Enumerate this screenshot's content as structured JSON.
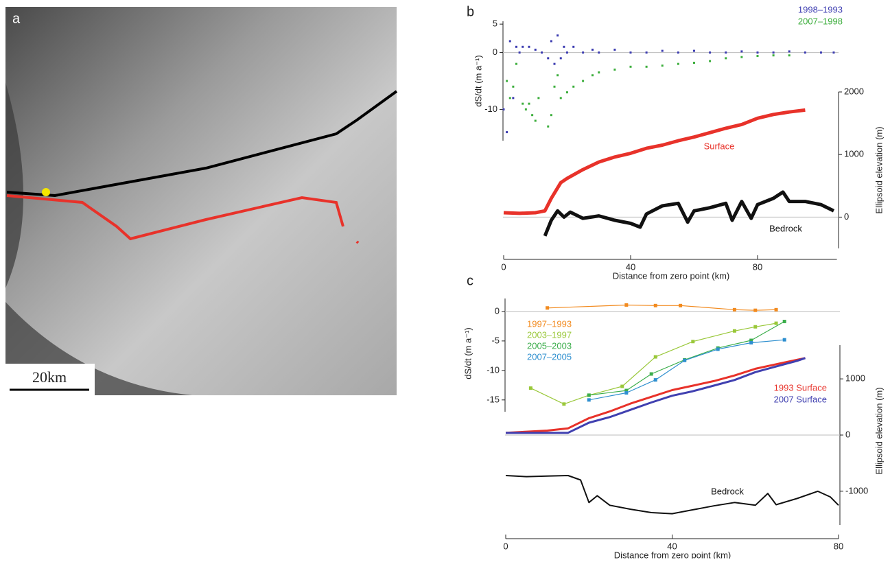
{
  "image_panel": {
    "label": "a",
    "scale_bar": "20km"
  },
  "chart_data": [
    {
      "type": "scatter",
      "label": "b",
      "xlabel": "Distance from zero point (km)",
      "ylabel": "dS/dt (m a⁻¹)",
      "y2label": "Ellipsoid elevation (m)",
      "xlim": [
        0,
        105
      ],
      "xticks": [
        0,
        40,
        80
      ],
      "ylim": [
        -15.5,
        5.5
      ],
      "yticks": [
        5,
        0,
        -10
      ],
      "y2lim": [
        -500,
        2000
      ],
      "y2ticks": [
        0,
        1000,
        2000
      ],
      "series": [
        {
          "name": "1998–1993",
          "color": "#3b3bb0",
          "mode": "points",
          "x": [
            0,
            1,
            2,
            3,
            4,
            5,
            6,
            8,
            10,
            12,
            14,
            15,
            16,
            17,
            18,
            19,
            20,
            22,
            25,
            28,
            30,
            35,
            40,
            45,
            50,
            55,
            60,
            65,
            70,
            75,
            80,
            85,
            90,
            95,
            100,
            104
          ],
          "values": [
            -10,
            -14,
            2,
            -8,
            1,
            0,
            1,
            1,
            0.5,
            0,
            -1,
            2,
            -2,
            3,
            -1,
            1,
            0,
            1,
            0,
            0.5,
            0,
            0.5,
            0,
            0,
            0.3,
            0,
            0.3,
            0,
            0,
            0.2,
            0,
            0,
            0.2,
            0,
            0,
            0
          ]
        },
        {
          "name": "2007–1998",
          "color": "#3cae3c",
          "mode": "points",
          "x": [
            1,
            2,
            3,
            4,
            6,
            7,
            8,
            9,
            10,
            11,
            14,
            15,
            16,
            17,
            18,
            20,
            22,
            25,
            28,
            30,
            35,
            40,
            45,
            50,
            55,
            60,
            65,
            70,
            75,
            80,
            85,
            90
          ],
          "values": [
            -5,
            -8,
            -6,
            -2,
            -9,
            -10,
            -9,
            -11,
            -12,
            -8,
            -13,
            -11,
            -6,
            -4,
            -8,
            -7,
            -6,
            -5,
            -4,
            -3.5,
            -3,
            -2.5,
            -2.5,
            -2.3,
            -2,
            -1.8,
            -1.5,
            -1,
            -0.8,
            -0.6,
            -0.5,
            -0.5
          ]
        },
        {
          "color": "#e8322a",
          "mode": "thick",
          "axis": "y2",
          "x": [
            0,
            5,
            10,
            13,
            15,
            18,
            20,
            25,
            30,
            35,
            40,
            45,
            50,
            55,
            60,
            65,
            70,
            75,
            80,
            85,
            90,
            95
          ],
          "values": [
            70,
            60,
            70,
            100,
            300,
            550,
            620,
            760,
            880,
            960,
            1020,
            1100,
            1150,
            1220,
            1280,
            1350,
            1420,
            1480,
            1580,
            1640,
            1680,
            1710
          ]
        },
        {
          "color": "#111111",
          "mode": "thick",
          "axis": "y2",
          "x": [
            13,
            15,
            17,
            19,
            21,
            25,
            30,
            35,
            40,
            43,
            45,
            50,
            55,
            58,
            60,
            65,
            70,
            72,
            75,
            78,
            80,
            85,
            88,
            90,
            95,
            100,
            104
          ],
          "values": [
            -300,
            -50,
            100,
            0,
            80,
            -20,
            20,
            -50,
            -100,
            -160,
            50,
            180,
            220,
            -80,
            100,
            150,
            220,
            -50,
            250,
            -20,
            200,
            300,
            400,
            250,
            250,
            200,
            100
          ]
        }
      ],
      "annotations": [
        {
          "text": "Surface",
          "color": "#e8322a"
        },
        {
          "text": "Bedrock",
          "color": "#111111"
        }
      ]
    },
    {
      "type": "line",
      "label": "c",
      "xlabel": "Distance from zero point (km)",
      "ylabel": "dS/dt (m a⁻¹)",
      "y2label": "Ellipsoid elevation (m)",
      "xlim": [
        0,
        80
      ],
      "xticks": [
        0,
        40,
        80
      ],
      "ylim": [
        -17,
        2.2
      ],
      "yticks": [
        0,
        -5,
        -10,
        -15
      ],
      "y2lim": [
        -1600,
        1600
      ],
      "y2ticks": [
        1000,
        0,
        -1000
      ],
      "series": [
        {
          "name": "1997–1993",
          "color": "#f28a1e",
          "mode": "line-markers",
          "x": [
            10,
            29,
            36,
            42,
            55,
            60,
            65
          ],
          "values": [
            0.6,
            1.1,
            1.0,
            1.0,
            0.3,
            0.2,
            0.3
          ]
        },
        {
          "name": "2003–1997",
          "color": "#9ac83a",
          "mode": "line-markers",
          "x": [
            6,
            14,
            20,
            28,
            36,
            45,
            55,
            60,
            65
          ],
          "values": [
            -13,
            -15.7,
            -14.2,
            -12.7,
            -7.7,
            -5.1,
            -3.3,
            -2.6,
            -2.0
          ]
        },
        {
          "name": "2005–2003",
          "color": "#3cae4c",
          "mode": "line-markers",
          "x": [
            20,
            29,
            35,
            43,
            51,
            59,
            67
          ],
          "values": [
            -14.2,
            -13.4,
            -10.6,
            -8.2,
            -6.2,
            -4.9,
            -1.7
          ]
        },
        {
          "name": "2007–2005",
          "color": "#2e8fcf",
          "mode": "line-markers",
          "x": [
            20,
            29,
            36,
            43,
            51,
            59,
            67
          ],
          "values": [
            -15,
            -13.8,
            -11.6,
            -8.3,
            -6.4,
            -5.3,
            -4.8
          ]
        },
        {
          "name": "1993 Surface",
          "color": "#e8322a",
          "mode": "thick",
          "axis": "y2",
          "x": [
            0,
            5,
            10,
            15,
            20,
            25,
            30,
            35,
            40,
            45,
            50,
            55,
            60,
            65,
            70,
            72
          ],
          "values": [
            40,
            60,
            80,
            120,
            300,
            420,
            560,
            680,
            800,
            880,
            960,
            1060,
            1180,
            1260,
            1340,
            1370
          ]
        },
        {
          "name": "2007 Surface",
          "color": "#4040b0",
          "mode": "thick",
          "axis": "y2",
          "x": [
            0,
            5,
            10,
            15,
            20,
            25,
            30,
            35,
            40,
            45,
            50,
            55,
            60,
            65,
            70,
            72
          ],
          "values": [
            40,
            40,
            40,
            40,
            220,
            320,
            450,
            580,
            700,
            780,
            880,
            980,
            1120,
            1220,
            1320,
            1370
          ]
        },
        {
          "color": "#111111",
          "mode": "line",
          "axis": "y2",
          "x": [
            0,
            5,
            10,
            15,
            18,
            20,
            22,
            25,
            30,
            35,
            40,
            45,
            50,
            55,
            60,
            63,
            65,
            70,
            75,
            78,
            80
          ],
          "values": [
            -720,
            -740,
            -730,
            -720,
            -800,
            -1200,
            -1080,
            -1250,
            -1320,
            -1380,
            -1400,
            -1330,
            -1260,
            -1200,
            -1250,
            -1040,
            -1240,
            -1130,
            -1000,
            -1100,
            -1250
          ]
        }
      ],
      "annotations": [
        {
          "text": "Bedrock",
          "color": "#111111"
        }
      ]
    }
  ]
}
